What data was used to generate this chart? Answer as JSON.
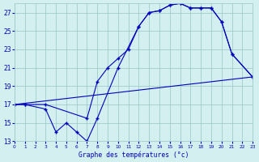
{
  "title": "Graphe des températures (°C)",
  "background_color": "#d4efef",
  "grid_color": "#a0cccc",
  "line_color": "#0000bb",
  "series": {
    "upper": {
      "x": [
        0,
        1,
        3,
        7,
        8,
        9,
        10,
        11,
        12,
        13,
        14,
        15,
        16,
        17,
        18,
        19,
        20,
        21,
        23
      ],
      "y": [
        17,
        17,
        17,
        15.5,
        19.5,
        21,
        22,
        23,
        25.5,
        27,
        27.2,
        27.8,
        28.0,
        27.5,
        27.5,
        27.5,
        26.0,
        22.5,
        20.0
      ]
    },
    "lower": {
      "x": [
        0,
        1,
        3,
        4,
        5,
        6,
        7,
        8,
        10,
        12,
        13,
        14,
        15,
        16,
        17,
        18,
        19,
        20,
        21,
        23
      ],
      "y": [
        17,
        17,
        16.5,
        14,
        15,
        14,
        13,
        15.5,
        21,
        25.5,
        27,
        27.2,
        27.8,
        28.0,
        27.5,
        27.5,
        27.5,
        26.0,
        22.5,
        20.0
      ]
    },
    "diagonal": {
      "x": [
        0,
        23
      ],
      "y": [
        17,
        20.0
      ]
    }
  },
  "xlim": [
    0,
    23
  ],
  "ylim": [
    13,
    28
  ],
  "yticks": [
    13,
    15,
    17,
    19,
    21,
    23,
    25,
    27
  ],
  "xticks": [
    0,
    1,
    2,
    3,
    4,
    5,
    6,
    7,
    8,
    9,
    10,
    11,
    12,
    13,
    14,
    15,
    16,
    17,
    18,
    19,
    20,
    21,
    22,
    23
  ],
  "xlabel": "Graphe des températures (°c)"
}
